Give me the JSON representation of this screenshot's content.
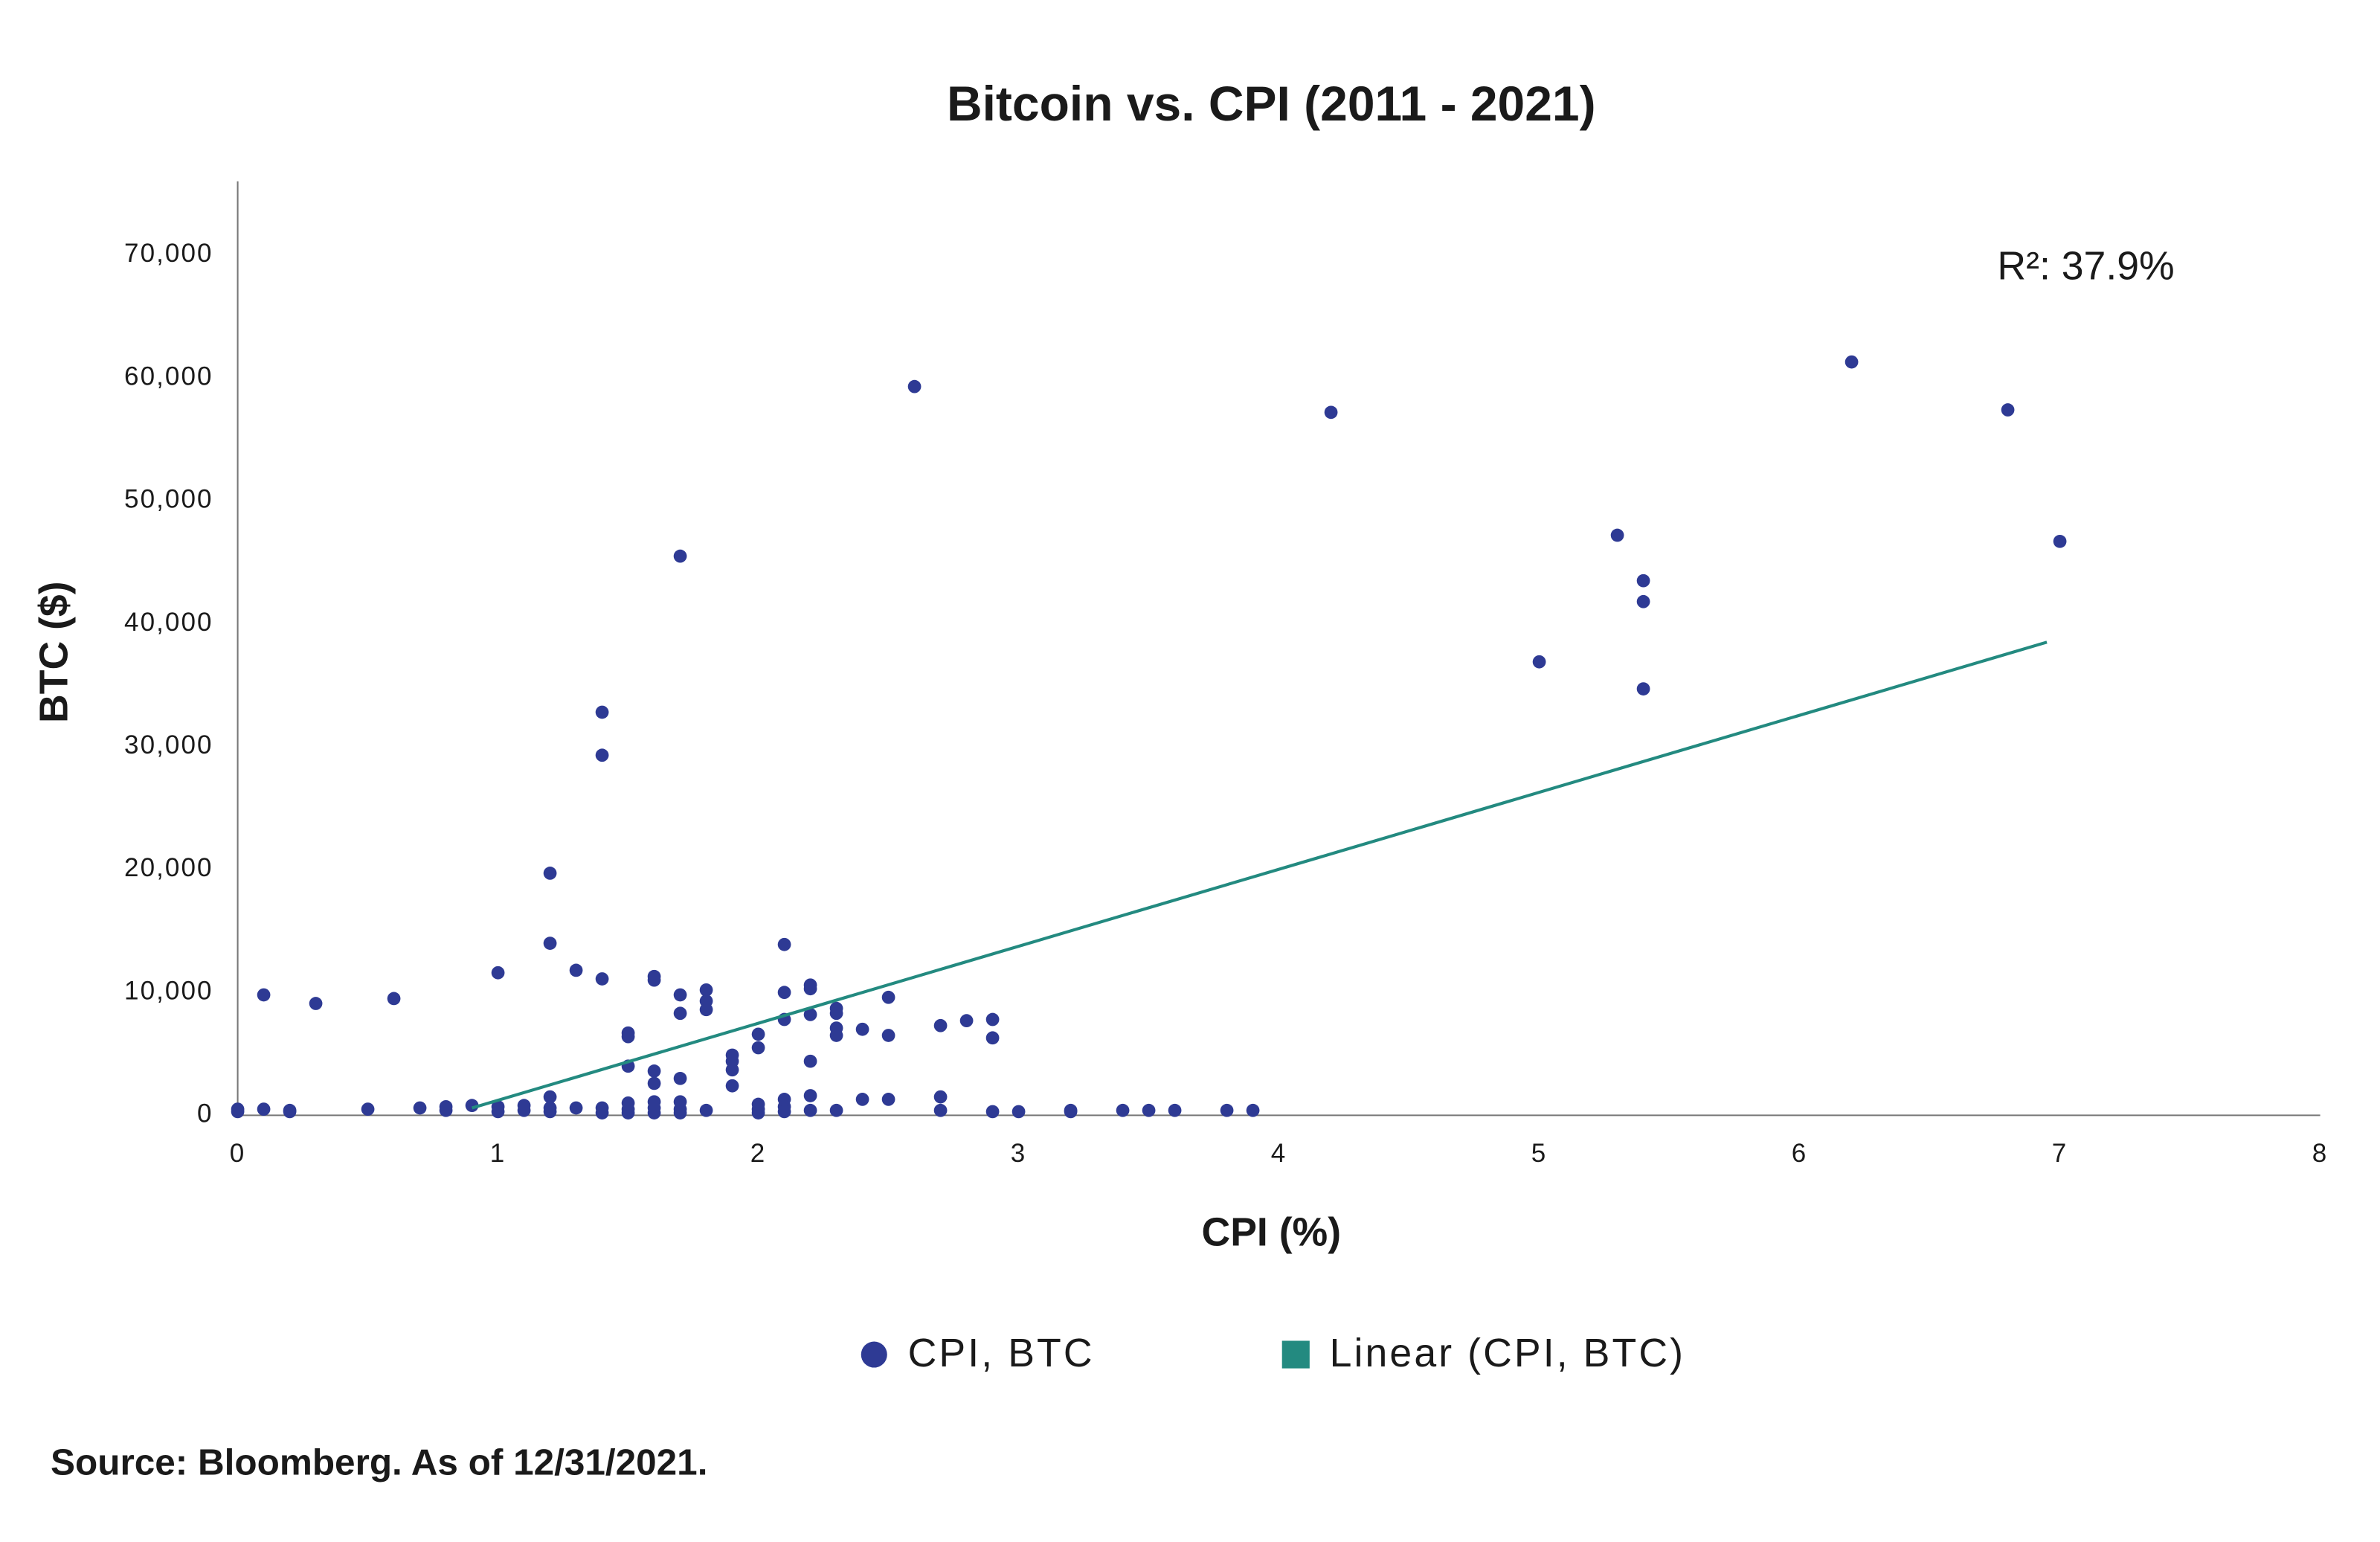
{
  "chart_data": {
    "type": "scatter",
    "title": "Bitcoin vs. CPI (2011 - 2021)",
    "x_label": "CPI (%)",
    "y_label": "BTC ($)",
    "annotation": "R²: 37.9%",
    "source": "Source: Bloomberg. As of 12/31/2021.",
    "xlim": [
      0,
      8
    ],
    "xticks": [
      0,
      1,
      2,
      3,
      4,
      5,
      6,
      7,
      8
    ],
    "ylim": [
      0,
      76000
    ],
    "yticks": [
      0,
      {
        "value": 10000,
        "label": "10,000"
      },
      {
        "value": 20000,
        "label": "20,000"
      },
      {
        "value": 30000,
        "label": "30,000"
      },
      {
        "value": 40000,
        "label": "40,000"
      },
      {
        "value": 50000,
        "label": "50,000"
      },
      {
        "value": 60000,
        "label": "60,000"
      },
      {
        "value": 70000,
        "label": "70,000"
      }
    ],
    "grid": false,
    "series": [
      {
        "name": "CPI, BTC",
        "color": "#2e3a94",
        "x": [
          0,
          0,
          0.1,
          0.2,
          0.2,
          0.5,
          0.7,
          0.8,
          0.8,
          0.9,
          1.0,
          1.0,
          1.1,
          1.1,
          1.2,
          1.2,
          1.2,
          1.3,
          1.4,
          1.4,
          1.5,
          1.5,
          1.5,
          1.6,
          1.6,
          1.6,
          1.7,
          1.7,
          1.7,
          1.8,
          1.9,
          2.0,
          2.0,
          2.0,
          2.1,
          2.1,
          2.1,
          2.2,
          2.2,
          2.3,
          2.4,
          2.5,
          2.7,
          2.7,
          2.9,
          3.0,
          3.2,
          3.2,
          3.4,
          3.5,
          3.6,
          3.8,
          3.9,
          0.1,
          0.3,
          0.6,
          1.0,
          1.2,
          1.2,
          1.3,
          1.4,
          1.4,
          1.4,
          1.5,
          1.5,
          1.5,
          1.6,
          1.6,
          1.6,
          1.6,
          1.7,
          1.7,
          1.7,
          1.7,
          1.8,
          1.8,
          1.8,
          1.9,
          1.9,
          1.9,
          2.0,
          2.0,
          2.1,
          2.1,
          2.1,
          2.2,
          2.2,
          2.2,
          2.2,
          2.3,
          2.3,
          2.3,
          2.3,
          2.4,
          2.5,
          2.5,
          2.6,
          2.7,
          2.8,
          2.9,
          2.9,
          4.2,
          5.0,
          5.3,
          5.4,
          5.4,
          5.4,
          6.2,
          6.8,
          7.0
        ],
        "y": [
          500,
          300,
          500,
          400,
          300,
          500,
          600,
          700,
          400,
          800,
          700,
          300,
          800,
          400,
          1500,
          600,
          300,
          600,
          600,
          200,
          1000,
          500,
          200,
          1100,
          600,
          200,
          1100,
          500,
          200,
          400,
          2400,
          900,
          500,
          200,
          1300,
          700,
          300,
          1600,
          400,
          400,
          1300,
          1300,
          1500,
          400,
          300,
          300,
          400,
          300,
          400,
          400,
          400,
          400,
          400,
          9800,
          9100,
          9500,
          11600,
          19700,
          14000,
          11800,
          11100,
          32800,
          29300,
          6700,
          6400,
          4000,
          11300,
          11000,
          3600,
          2600,
          45500,
          9800,
          8300,
          3000,
          10200,
          9300,
          8600,
          4900,
          4400,
          3700,
          6600,
          5500,
          13900,
          10000,
          7800,
          10600,
          10300,
          8200,
          4400,
          8700,
          8300,
          7100,
          6500,
          7000,
          9600,
          6500,
          59300,
          7300,
          7700,
          7800,
          6300,
          57200,
          36900,
          47200,
          43500,
          41800,
          34700,
          61300,
          57400,
          46700
        ]
      },
      {
        "name": "Linear (CPI, BTC)",
        "color": "#238a80",
        "type": "line",
        "x": [
          0.9,
          6.95
        ],
        "y": [
          600,
          38500
        ]
      }
    ]
  }
}
